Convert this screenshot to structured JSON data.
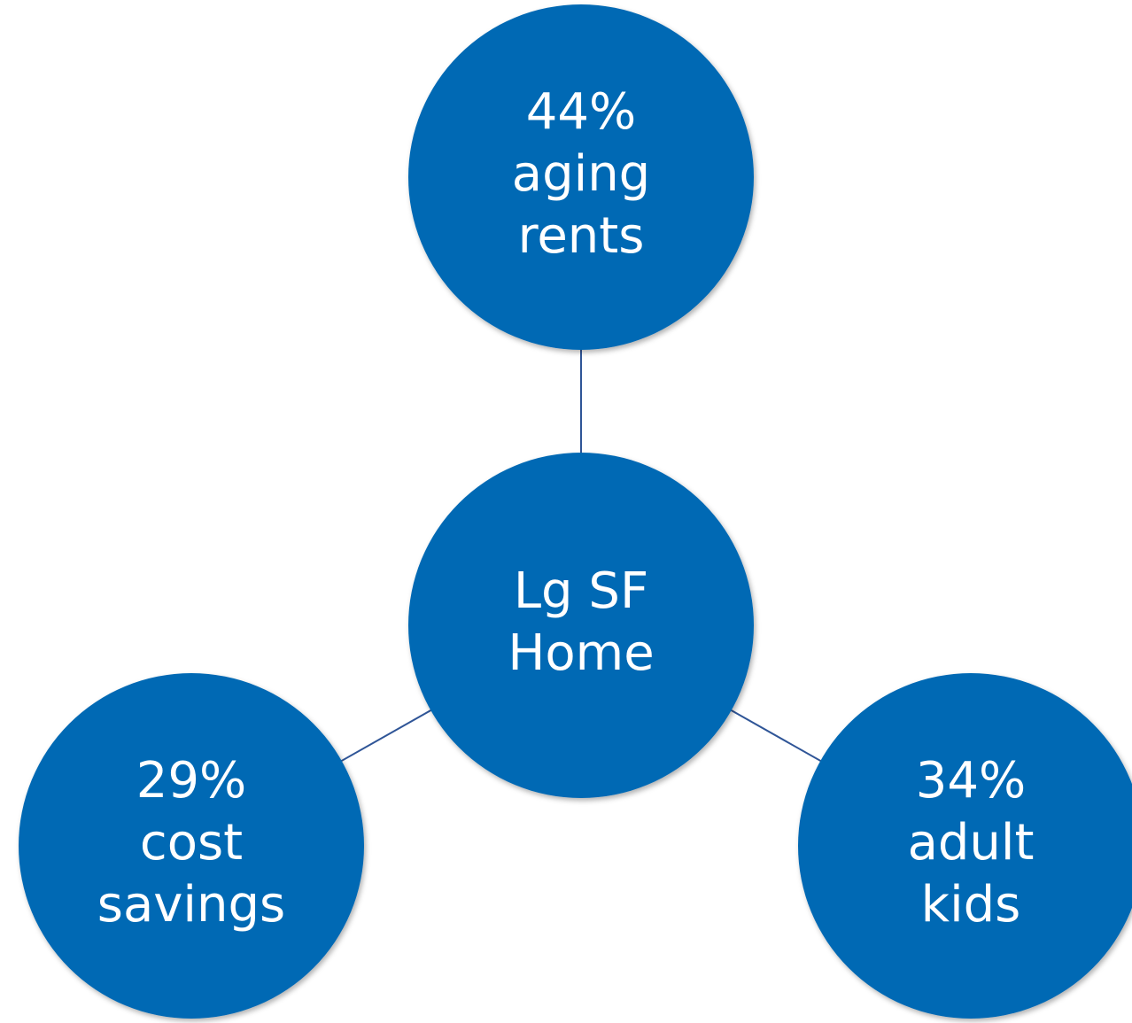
{
  "center": {
    "lines": [
      "Lg SF",
      "Home"
    ]
  },
  "nodes": [
    {
      "lines": [
        "44%",
        "aging",
        "rents"
      ]
    },
    {
      "lines": [
        "29%",
        "cost",
        "savings"
      ]
    },
    {
      "lines": [
        "34%",
        "adult",
        "kids"
      ]
    }
  ]
}
